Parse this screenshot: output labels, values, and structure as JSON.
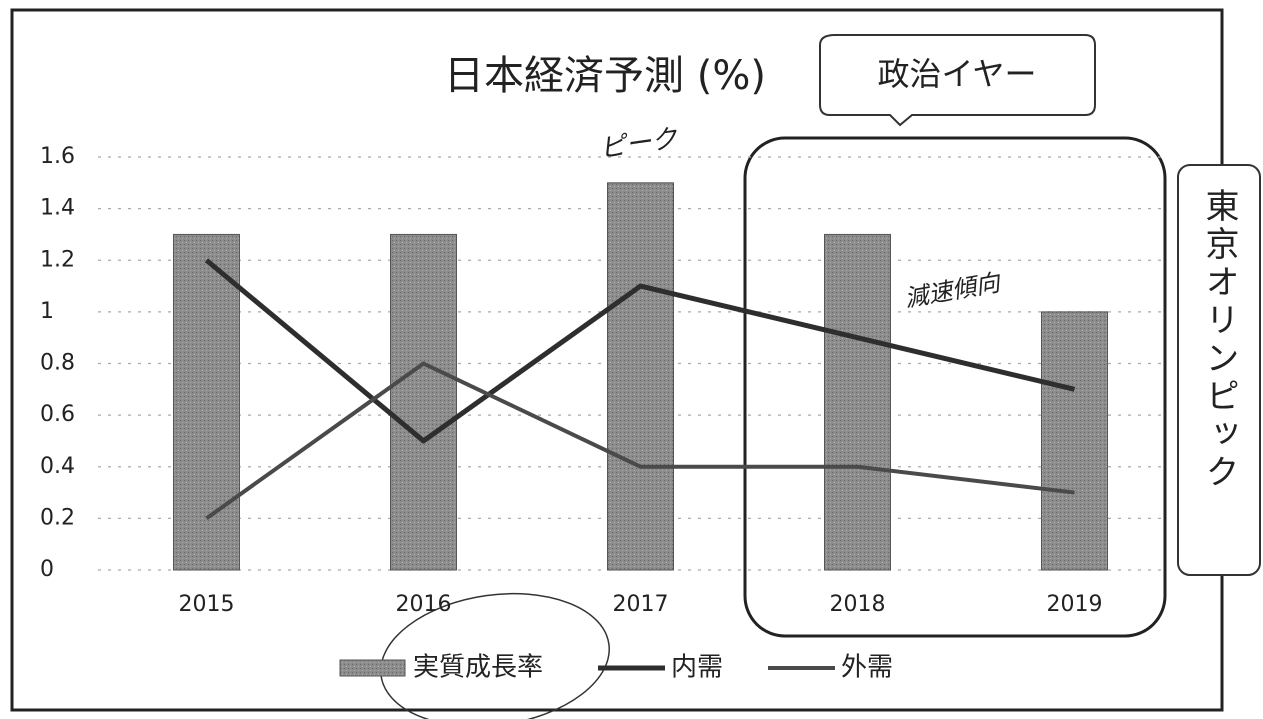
{
  "chart_data": {
    "type": "bar_line",
    "title": "日本経済予測 (%)",
    "categories": [
      "2015",
      "2016",
      "2017",
      "2018",
      "2019"
    ],
    "series": [
      {
        "name": "実質成長率",
        "type": "bar",
        "color": "#8c8c8c",
        "values": [
          1.3,
          1.3,
          1.5,
          1.3,
          1.0
        ]
      },
      {
        "name": "内需",
        "type": "line",
        "color": "#2e2e2e",
        "values": [
          1.2,
          0.5,
          1.1,
          0.9,
          0.7
        ]
      },
      {
        "name": "外需",
        "type": "line",
        "color": "#4a4a4a",
        "values": [
          0.2,
          0.8,
          0.4,
          0.4,
          0.3
        ]
      }
    ],
    "ylim": [
      0,
      1.6
    ],
    "yticks": [
      0,
      0.2,
      0.4,
      0.6,
      0.8,
      1,
      1.2,
      1.4,
      1.6
    ],
    "grid": true,
    "legend": "bottom",
    "annotations": {
      "callout": "政治イヤー",
      "side_box": "東京オリンピック",
      "peak_note": "ピーク",
      "slowdown_note": "減速傾向"
    }
  }
}
